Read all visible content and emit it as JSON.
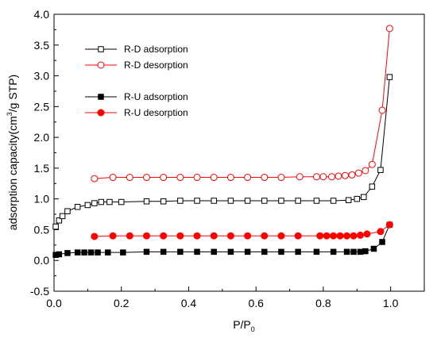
{
  "chart_data": {
    "type": "line",
    "xlabel": "P/P",
    "xlabel_sub": "0",
    "ylabel_parts": [
      "adsorption capacity(cm",
      "3",
      "/g STP)"
    ],
    "xlim": [
      0.0,
      1.1
    ],
    "ylim": [
      -0.5,
      4.0
    ],
    "xticks": [
      0.0,
      0.2,
      0.4,
      0.6,
      0.8,
      1.0
    ],
    "xtick_labels": [
      "0.0",
      "0.2",
      "0.4",
      "0.6",
      "0.8",
      "1.0"
    ],
    "yticks": [
      -0.5,
      0.0,
      0.5,
      1.0,
      1.5,
      2.0,
      2.5,
      3.0,
      3.5,
      4.0
    ],
    "ytick_labels": [
      "-0.5",
      "0.0",
      "0.5",
      "1.0",
      "1.5",
      "2.0",
      "2.5",
      "3.0",
      "3.5",
      "4.0"
    ],
    "grid": false,
    "legend_position": "top-left",
    "series": [
      {
        "name": "R-D adsorption",
        "color": "#000000",
        "marker": "square-open",
        "x": [
          0.005,
          0.015,
          0.025,
          0.04,
          0.07,
          0.1,
          0.12,
          0.14,
          0.165,
          0.2,
          0.275,
          0.325,
          0.375,
          0.425,
          0.475,
          0.525,
          0.575,
          0.625,
          0.675,
          0.725,
          0.78,
          0.83,
          0.875,
          0.9,
          0.92,
          0.945,
          0.97,
          0.997
        ],
        "y": [
          0.55,
          0.65,
          0.72,
          0.8,
          0.87,
          0.9,
          0.93,
          0.95,
          0.95,
          0.95,
          0.96,
          0.96,
          0.97,
          0.97,
          0.97,
          0.97,
          0.97,
          0.97,
          0.97,
          0.97,
          0.97,
          0.97,
          0.98,
          1.0,
          1.03,
          1.2,
          1.47,
          2.98
        ]
      },
      {
        "name": "R-D desorption",
        "color": "#ff0000",
        "marker": "circle-open",
        "x": [
          0.997,
          0.975,
          0.945,
          0.925,
          0.905,
          0.885,
          0.865,
          0.845,
          0.825,
          0.8,
          0.78,
          0.73,
          0.675,
          0.625,
          0.575,
          0.525,
          0.475,
          0.425,
          0.375,
          0.325,
          0.275,
          0.225,
          0.175,
          0.12
        ],
        "y": [
          3.77,
          2.44,
          1.56,
          1.46,
          1.42,
          1.39,
          1.38,
          1.37,
          1.36,
          1.36,
          1.36,
          1.36,
          1.35,
          1.35,
          1.35,
          1.35,
          1.35,
          1.35,
          1.35,
          1.35,
          1.35,
          1.35,
          1.35,
          1.33
        ]
      },
      {
        "name": "R-U adsorption",
        "color": "#000000",
        "marker": "square-filled",
        "x": [
          0.005,
          0.015,
          0.04,
          0.07,
          0.09,
          0.11,
          0.13,
          0.16,
          0.205,
          0.275,
          0.325,
          0.375,
          0.425,
          0.475,
          0.525,
          0.575,
          0.625,
          0.675,
          0.725,
          0.78,
          0.83,
          0.87,
          0.89,
          0.91,
          0.925,
          0.95,
          0.975,
          0.997
        ],
        "y": [
          0.09,
          0.1,
          0.12,
          0.13,
          0.13,
          0.13,
          0.13,
          0.13,
          0.13,
          0.14,
          0.14,
          0.14,
          0.14,
          0.14,
          0.14,
          0.14,
          0.14,
          0.14,
          0.14,
          0.14,
          0.14,
          0.14,
          0.14,
          0.14,
          0.15,
          0.19,
          0.3,
          0.58
        ]
      },
      {
        "name": "R-U desorption",
        "color": "#ff0000",
        "marker": "circle-filled",
        "x": [
          0.997,
          0.97,
          0.93,
          0.91,
          0.89,
          0.87,
          0.85,
          0.83,
          0.81,
          0.79,
          0.725,
          0.675,
          0.625,
          0.575,
          0.525,
          0.475,
          0.425,
          0.375,
          0.325,
          0.275,
          0.225,
          0.175,
          0.12
        ],
        "y": [
          0.58,
          0.47,
          0.43,
          0.41,
          0.4,
          0.4,
          0.4,
          0.4,
          0.4,
          0.4,
          0.4,
          0.4,
          0.4,
          0.4,
          0.4,
          0.4,
          0.4,
          0.4,
          0.4,
          0.4,
          0.4,
          0.4,
          0.39
        ]
      }
    ]
  }
}
